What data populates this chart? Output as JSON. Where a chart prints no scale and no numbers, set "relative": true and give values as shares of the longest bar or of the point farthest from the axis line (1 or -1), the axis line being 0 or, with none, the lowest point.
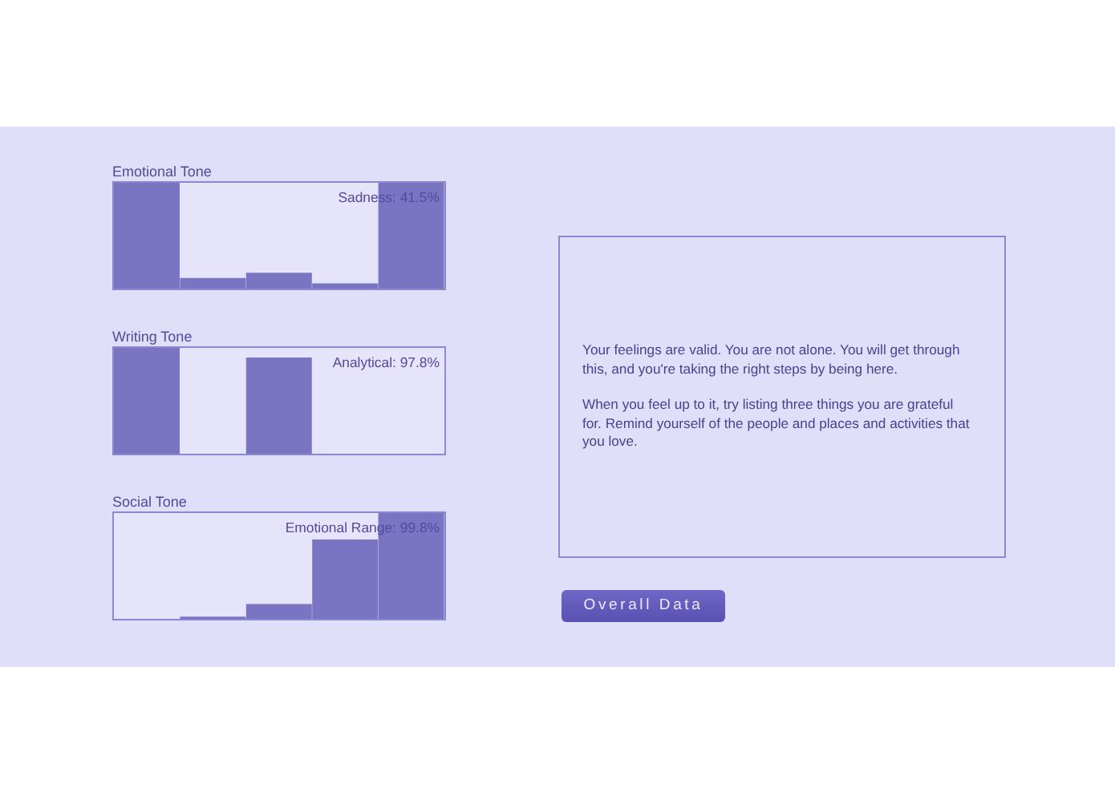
{
  "chart_data": [
    {
      "type": "bar",
      "title": "Emotional Tone",
      "categories": [
        null,
        null,
        null,
        null,
        null
      ],
      "values": [
        1,
        0.1,
        0.15,
        0.05,
        1
      ],
      "color": "#7a75c2",
      "relative": true,
      "annotations": [
        "Sadness: 41.5%"
      ]
    },
    {
      "type": "bar",
      "title": "Writing Tone",
      "categories": [
        null,
        null,
        null,
        null,
        null
      ],
      "values": [
        1,
        0,
        0.91,
        0,
        0
      ],
      "color": "#7a75c2",
      "relative": true,
      "annotations": [
        "Analytical: 97.8%"
      ]
    },
    {
      "type": "bar",
      "title": "Social Tone",
      "categories": [
        null,
        null,
        null,
        null,
        null
      ],
      "values": [
        0,
        0.02,
        0.14,
        0.75,
        1
      ],
      "color": "#7a75c2",
      "relative": true,
      "annotations": [
        "Emotional Range: 99.8%"
      ]
    },
    {
      "type": "other",
      "annotations": [
        "Your feelings are valid. You are not alone. You will get through this, and you're taking the right steps by being here.",
        "When you feel up to it, try listing three things you are grateful for. Remind yourself of the people and places and activities that you love.",
        "Overall Data"
      ]
    }
  ]
}
